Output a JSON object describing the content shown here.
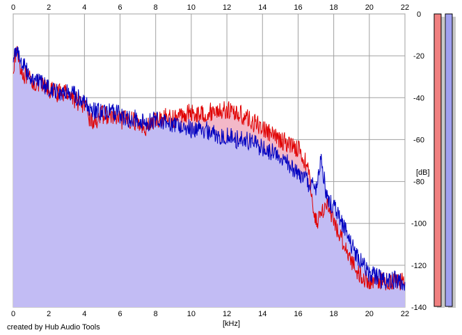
{
  "credit": "created by Hub Audio Tools",
  "chart_data": {
    "type": "area",
    "title": "",
    "xlabel": "[kHz]",
    "ylabel": "[dB]",
    "xlim": [
      0,
      22
    ],
    "ylim": [
      -140,
      0
    ],
    "x_ticks": [
      0,
      2,
      4,
      6,
      8,
      10,
      12,
      14,
      16,
      18,
      20,
      22
    ],
    "y_ticks": [
      0,
      -20,
      -40,
      -60,
      -80,
      -100,
      -120,
      -140
    ],
    "grid": true,
    "legend": "none",
    "colors": {
      "red_line": "#e00000",
      "red_fill": "#f3b8c8",
      "blue_line": "#0000c0",
      "blue_fill": "#bcbcf8",
      "grid": "#a0a0a0",
      "meter_red": "#f08080",
      "meter_blue": "#a0a0f0"
    },
    "series": [
      {
        "color": "red",
        "x": [
          0.0,
          0.2,
          0.5,
          1.0,
          1.5,
          2.0,
          2.5,
          3.0,
          3.5,
          4.0,
          4.3,
          4.5,
          5.0,
          5.5,
          6.0,
          6.5,
          7.0,
          7.5,
          8.0,
          8.5,
          9.0,
          9.5,
          10.0,
          10.5,
          11.0,
          11.5,
          12.0,
          12.5,
          13.0,
          13.5,
          14.0,
          14.5,
          15.0,
          15.5,
          16.0,
          16.5,
          16.8,
          17.0,
          17.3,
          17.6,
          18.0,
          18.5,
          19.0,
          19.5,
          20.0,
          20.5,
          21.0,
          21.5,
          22.0
        ],
        "y": [
          -25,
          -17,
          -28,
          -32,
          -34,
          -36,
          -38,
          -37,
          -41,
          -44,
          -50,
          -52,
          -48,
          -49,
          -51,
          -50,
          -52,
          -54,
          -51,
          -49,
          -50,
          -48,
          -47,
          -48,
          -47,
          -46,
          -46,
          -47,
          -49,
          -52,
          -54,
          -58,
          -60,
          -62,
          -64,
          -72,
          -88,
          -100,
          -95,
          -90,
          -100,
          -108,
          -118,
          -125,
          -128,
          -127,
          -128,
          -127,
          -128
        ]
      },
      {
        "color": "blue",
        "x": [
          0.0,
          0.2,
          0.5,
          1.0,
          1.5,
          2.0,
          2.5,
          3.0,
          3.5,
          4.0,
          4.5,
          5.0,
          5.5,
          6.0,
          6.5,
          7.0,
          7.5,
          8.0,
          8.5,
          9.0,
          9.5,
          10.0,
          10.5,
          11.0,
          11.5,
          12.0,
          12.5,
          13.0,
          13.5,
          14.0,
          14.5,
          15.0,
          15.5,
          16.0,
          16.5,
          17.0,
          17.3,
          17.6,
          18.0,
          18.5,
          19.0,
          19.5,
          20.0,
          20.5,
          21.0,
          21.5,
          22.0
        ],
        "y": [
          -22,
          -16,
          -24,
          -30,
          -33,
          -35,
          -37,
          -38,
          -39,
          -43,
          -46,
          -47,
          -47,
          -48,
          -50,
          -50,
          -52,
          -50,
          -51,
          -53,
          -53,
          -55,
          -55,
          -56,
          -58,
          -58,
          -60,
          -60,
          -62,
          -64,
          -66,
          -68,
          -72,
          -76,
          -80,
          -84,
          -68,
          -88,
          -92,
          -100,
          -110,
          -118,
          -124,
          -126,
          -128,
          -127,
          -128
        ]
      }
    ]
  }
}
